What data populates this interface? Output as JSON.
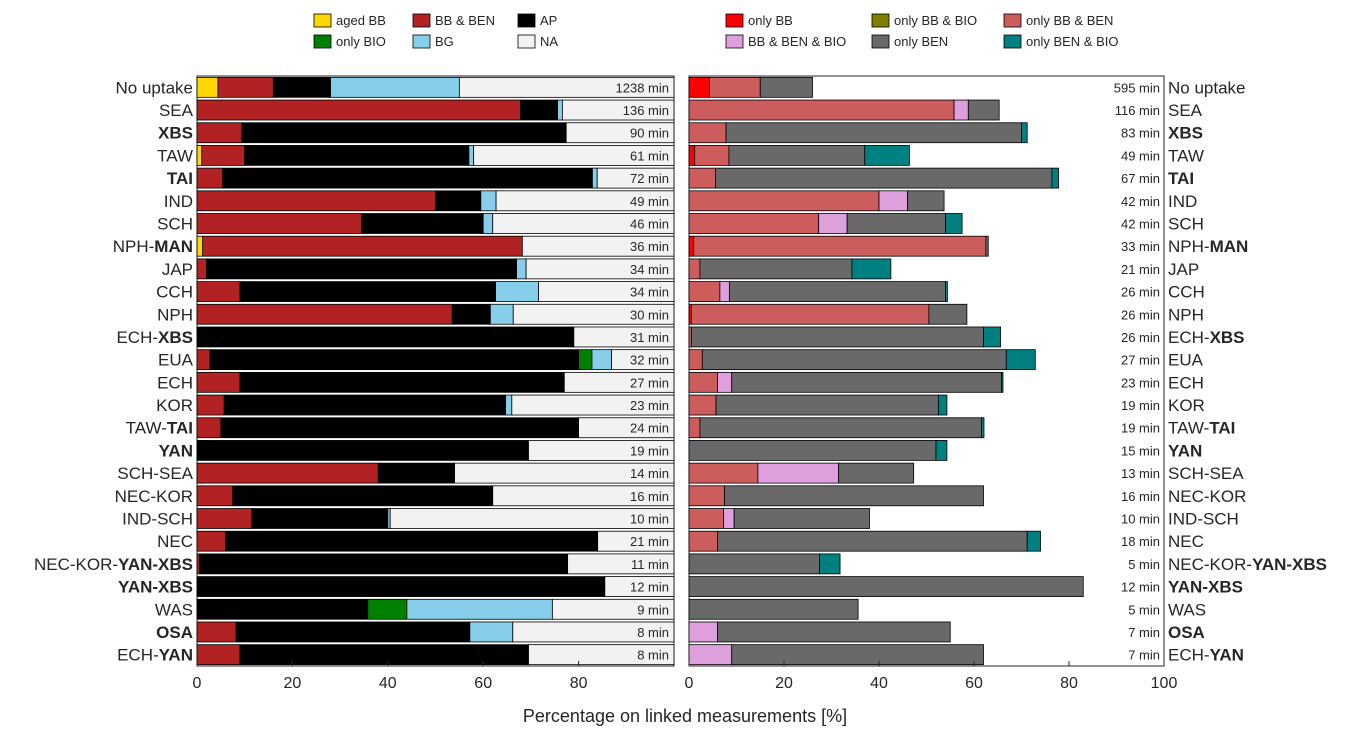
{
  "chart_data": {
    "type": "bar",
    "orientation": "horizontal",
    "stacked": true,
    "xlabel": "Percentage on linked measurements [%]",
    "xlim": [
      0,
      100
    ],
    "xticks_left": [
      "0",
      "20",
      "40",
      "60",
      "80"
    ],
    "xticks_right": [
      "0",
      "20",
      "40",
      "60",
      "80",
      "100"
    ],
    "categories": [
      {
        "label": [
          {
            "t": "No uptake",
            "b": false
          }
        ]
      },
      {
        "label": [
          {
            "t": "SEA",
            "b": false
          }
        ]
      },
      {
        "label": [
          {
            "t": "XBS",
            "b": true
          }
        ]
      },
      {
        "label": [
          {
            "t": "TAW",
            "b": false
          }
        ]
      },
      {
        "label": [
          {
            "t": "TAI",
            "b": true
          }
        ]
      },
      {
        "label": [
          {
            "t": "IND",
            "b": false
          }
        ]
      },
      {
        "label": [
          {
            "t": "SCH",
            "b": false
          }
        ]
      },
      {
        "label": [
          {
            "t": "NPH-",
            "b": false
          },
          {
            "t": "MAN",
            "b": true
          }
        ]
      },
      {
        "label": [
          {
            "t": "JAP",
            "b": false
          }
        ]
      },
      {
        "label": [
          {
            "t": "CCH",
            "b": false
          }
        ]
      },
      {
        "label": [
          {
            "t": "NPH",
            "b": false
          }
        ]
      },
      {
        "label": [
          {
            "t": "ECH-",
            "b": false
          },
          {
            "t": "XBS",
            "b": true
          }
        ]
      },
      {
        "label": [
          {
            "t": "EUA",
            "b": false
          }
        ]
      },
      {
        "label": [
          {
            "t": "ECH",
            "b": false
          }
        ]
      },
      {
        "label": [
          {
            "t": "KOR",
            "b": false
          }
        ]
      },
      {
        "label": [
          {
            "t": "TAW-",
            "b": false
          },
          {
            "t": "TAI",
            "b": true
          }
        ]
      },
      {
        "label": [
          {
            "t": "YAN",
            "b": true
          }
        ]
      },
      {
        "label": [
          {
            "t": "SCH-SEA",
            "b": false
          }
        ]
      },
      {
        "label": [
          {
            "t": "NEC-KOR",
            "b": false
          }
        ]
      },
      {
        "label": [
          {
            "t": "IND-SCH",
            "b": false
          }
        ]
      },
      {
        "label": [
          {
            "t": "NEC",
            "b": false
          }
        ]
      },
      {
        "label": [
          {
            "t": "NEC-KOR-",
            "b": false
          },
          {
            "t": "YAN-XBS",
            "b": true
          }
        ]
      },
      {
        "label": [
          {
            "t": "YAN-XBS",
            "b": true
          }
        ]
      },
      {
        "label": [
          {
            "t": "WAS",
            "b": false
          }
        ]
      },
      {
        "label": [
          {
            "t": "OSA",
            "b": true
          }
        ]
      },
      {
        "label": [
          {
            "t": "ECH-",
            "b": false
          },
          {
            "t": "YAN",
            "b": true
          }
        ]
      }
    ],
    "left_panel": {
      "minutes": [
        "1238 min",
        "136 min",
        "90 min",
        "61 min",
        "72 min",
        "49 min",
        "46 min",
        "36 min",
        "34 min",
        "34 min",
        "30 min",
        "31 min",
        "32 min",
        "27 min",
        "23 min",
        "24 min",
        "19 min",
        "14 min",
        "16 min",
        "10 min",
        "21 min",
        "11 min",
        "12 min",
        "9 min",
        "8 min",
        "8 min"
      ],
      "series": [
        {
          "name": "aged BB",
          "color": "#FFD700",
          "values": [
            4.4,
            0,
            0,
            1,
            0,
            0,
            0,
            1.2,
            0,
            0,
            0,
            0,
            0,
            0,
            0,
            0,
            0,
            0,
            0,
            0,
            0,
            0,
            0,
            0,
            0,
            0
          ]
        },
        {
          "name": "BB & BEN",
          "color": "#B22222",
          "values": [
            11.6,
            67.8,
            9.4,
            9,
            5.4,
            50,
            34.5,
            67,
            2,
            9,
            53.5,
            0,
            2.7,
            9,
            5.7,
            5,
            0,
            38,
            7.5,
            11.5,
            6,
            0.5,
            0,
            0,
            8.2,
            9
          ]
        },
        {
          "name": "AP",
          "color": "#000000",
          "values": [
            12,
            7.8,
            68,
            47,
            77.5,
            9.5,
            25.5,
            0,
            65,
            53.6,
            8,
            79,
            77.3,
            68,
            59,
            75,
            69.5,
            16,
            54.5,
            28.5,
            78,
            77.2,
            85.5,
            35.8,
            49,
            60.5
          ]
        },
        {
          "name": "only BIO",
          "color": "#008000",
          "values": [
            0,
            0,
            0,
            0,
            0,
            0,
            0,
            0,
            0,
            0,
            0,
            0,
            2.8,
            0,
            0,
            0,
            0,
            0,
            0,
            0,
            0,
            0,
            0,
            8.2,
            0,
            0
          ]
        },
        {
          "name": "BG",
          "color": "#87CEEB",
          "values": [
            27,
            1,
            0,
            1,
            1,
            3.2,
            2,
            0,
            2,
            9,
            4.8,
            0,
            4.1,
            0,
            1.3,
            0,
            0,
            0,
            0,
            0.5,
            0,
            0,
            0,
            30.5,
            9,
            0
          ]
        },
        {
          "name": "NA",
          "color": "#F2F2F2",
          "values": [
            45,
            23.4,
            22.6,
            42,
            16.1,
            37.3,
            38,
            31.8,
            31,
            28.4,
            33.7,
            21,
            13.1,
            23,
            34,
            20,
            30.5,
            46,
            38,
            59.5,
            16,
            22.3,
            14.5,
            25.5,
            33.8,
            30.5
          ]
        }
      ]
    },
    "right_panel": {
      "minutes": [
        "595 min",
        "116 min",
        "83 min",
        "49 min",
        "67 min",
        "42 min",
        "42 min",
        "33 min",
        "21 min",
        "26 min",
        "26 min",
        "26 min",
        "27 min",
        "23 min",
        "19 min",
        "19 min",
        "15 min",
        "13 min",
        "16 min",
        "10 min",
        "18 min",
        "5 min",
        "12 min",
        "5 min",
        "7 min",
        "7 min"
      ],
      "series": [
        {
          "name": "only BB",
          "color": "#FF0000",
          "values": [
            4.3,
            0,
            0,
            1.2,
            0,
            0,
            0,
            1,
            0,
            0,
            0.5,
            0,
            0,
            0,
            0,
            0,
            0,
            0,
            0,
            0,
            0,
            0,
            0,
            0,
            0,
            0
          ]
        },
        {
          "name": "only BB & BIO",
          "color": "#808000",
          "values": [
            0,
            0,
            0,
            0,
            0,
            0,
            0,
            0,
            0,
            0,
            0,
            0,
            0,
            0,
            0,
            0,
            0,
            0,
            0,
            0,
            0,
            0,
            0,
            0,
            0,
            0
          ]
        },
        {
          "name": "only BB & BEN",
          "color": "#CD5C5C",
          "values": [
            10.7,
            55.8,
            7.8,
            7.2,
            5.6,
            40,
            27.3,
            61.5,
            2.3,
            6.5,
            50,
            0.5,
            2.8,
            6,
            5.7,
            2.3,
            0,
            14.5,
            7.5,
            7.3,
            6,
            0,
            0,
            0,
            0,
            0
          ]
        },
        {
          "name": "BB & BEN & BIO",
          "color": "#DDA0DD",
          "values": [
            0,
            3,
            0,
            0,
            0,
            6,
            6,
            0,
            0,
            2,
            0,
            0,
            0,
            3,
            0,
            0,
            0,
            17,
            0,
            2.2,
            0,
            0,
            0,
            0,
            6,
            9
          ]
        },
        {
          "name": "only BEN",
          "color": "#696969",
          "values": [
            11,
            6.5,
            62.2,
            28.6,
            70.8,
            7.7,
            20.7,
            0.5,
            32,
            45.5,
            8,
            61.5,
            64,
            56.8,
            46.8,
            59.3,
            52,
            15.8,
            54.5,
            28.5,
            65.2,
            27.5,
            83,
            35.6,
            49,
            53
          ]
        },
        {
          "name": "only BEN & BIO",
          "color": "#008080",
          "values": [
            0,
            0,
            1.2,
            9.4,
            1.4,
            0,
            3.5,
            0,
            8.2,
            0.4,
            0,
            3.6,
            6.1,
            0.3,
            1.8,
            0.5,
            2.3,
            0,
            0,
            0,
            2.8,
            4.3,
            0,
            0,
            0,
            0
          ]
        }
      ]
    },
    "legend_left": [
      {
        "name": "aged BB",
        "color": "#FFD700"
      },
      {
        "name": "BB & BEN",
        "color": "#B22222"
      },
      {
        "name": "AP",
        "color": "#000000"
      },
      {
        "name": "only BIO",
        "color": "#008000"
      },
      {
        "name": "BG",
        "color": "#87CEEB"
      },
      {
        "name": "NA",
        "color": "#F2F2F2"
      }
    ],
    "legend_right": [
      {
        "name": "only BB",
        "color": "#FF0000"
      },
      {
        "name": "only BB & BIO",
        "color": "#808000"
      },
      {
        "name": "only BB & BEN",
        "color": "#CD5C5C"
      },
      {
        "name": "BB & BEN & BIO",
        "color": "#DDA0DD"
      },
      {
        "name": "only BEN",
        "color": "#696969"
      },
      {
        "name": "only BEN & BIO",
        "color": "#008080"
      }
    ]
  }
}
